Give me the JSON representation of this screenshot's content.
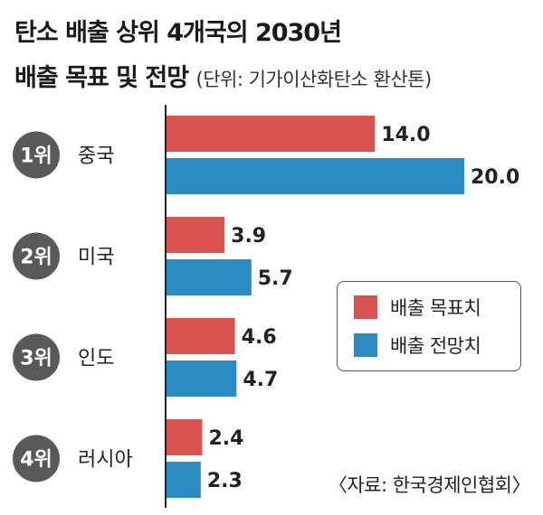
{
  "header": {
    "title_line1": "탄소 배출 상위 4개국의 2030년",
    "title_line2": "배출 목표 및 전망",
    "unit": "(단위: 기가이산화탄소 환산톤)"
  },
  "chart_data": {
    "type": "bar",
    "orientation": "horizontal",
    "title": "탄소 배출 상위 4개국의 2030년 배출 목표 및 전망",
    "categories": [
      "중국",
      "미국",
      "인도",
      "러시아"
    ],
    "ranks": [
      "1위",
      "2위",
      "3위",
      "4위"
    ],
    "series": [
      {
        "name": "배출 목표치",
        "values": [
          14.0,
          3.9,
          4.6,
          2.4
        ],
        "labels": [
          "14.0",
          "3.9",
          "4.6",
          "2.4"
        ],
        "color": "#d9534f"
      },
      {
        "name": "배출 전망치",
        "values": [
          20.0,
          5.7,
          4.7,
          2.3
        ],
        "labels": [
          "20.0",
          "5.7",
          "4.7",
          "2.3"
        ],
        "color": "#2a8cc2"
      }
    ],
    "xlim": [
      0,
      20
    ],
    "legend": "right",
    "grid": false
  },
  "colors": {
    "target": "#d9534f",
    "forecast": "#2a8cc2",
    "rank_badge": "#595959",
    "axis": "#222222"
  },
  "source": "〈자료: 한국경제인협회〉"
}
